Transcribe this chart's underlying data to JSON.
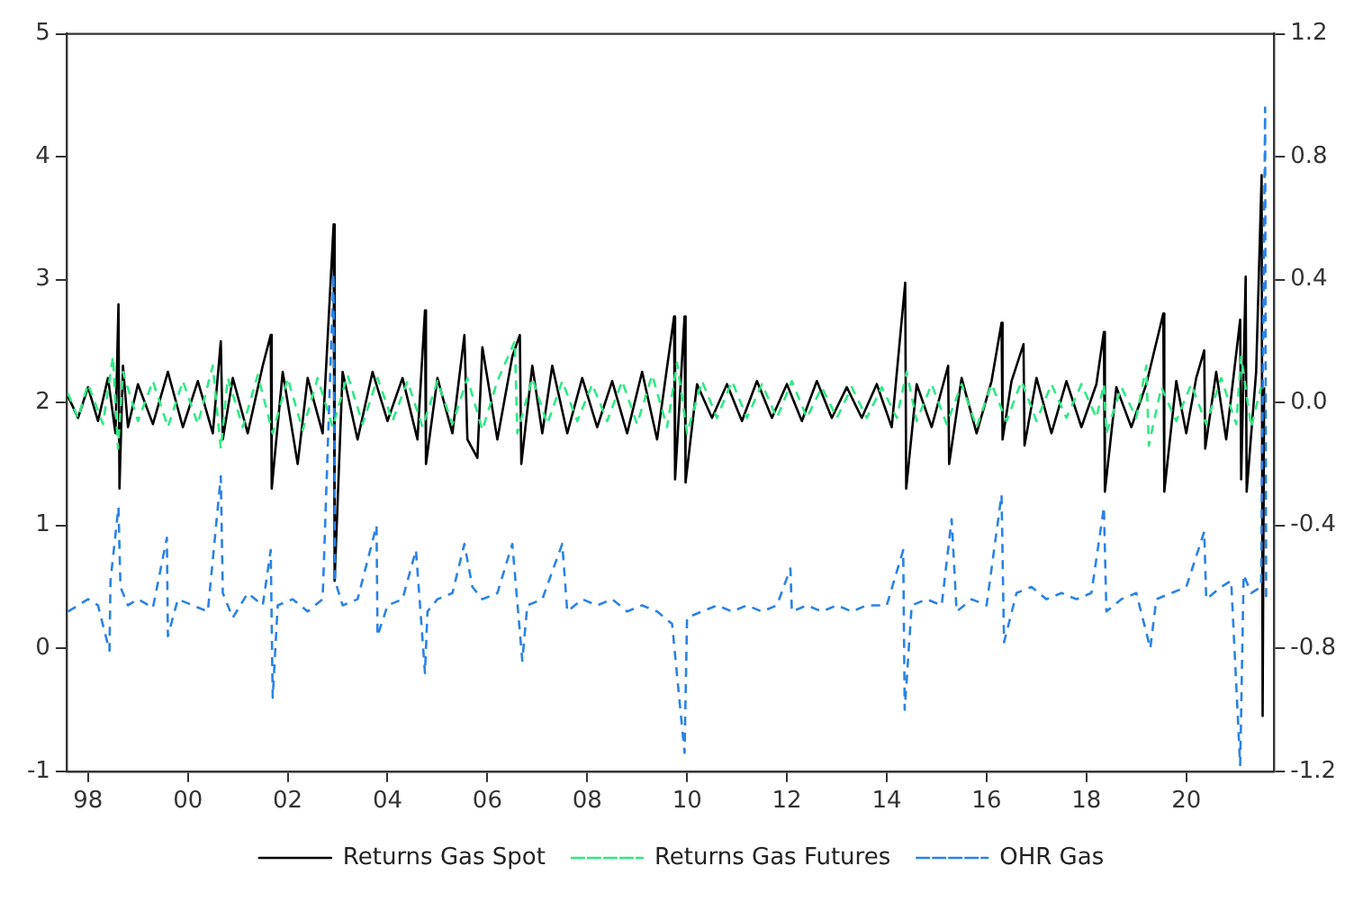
{
  "chart_data": {
    "type": "line",
    "xlim": [
      1997.57,
      2021.76
    ],
    "xticks": [
      {
        "value": 1998,
        "label": "98"
      },
      {
        "value": 2000,
        "label": "00"
      },
      {
        "value": 2002,
        "label": "02"
      },
      {
        "value": 2004,
        "label": "04"
      },
      {
        "value": 2006,
        "label": "06"
      },
      {
        "value": 2008,
        "label": "08"
      },
      {
        "value": 2010,
        "label": "10"
      },
      {
        "value": 2012,
        "label": "12"
      },
      {
        "value": 2014,
        "label": "14"
      },
      {
        "value": 2016,
        "label": "16"
      },
      {
        "value": 2018,
        "label": "18"
      },
      {
        "value": 2020,
        "label": "20"
      }
    ],
    "ylim": [
      -1,
      5
    ],
    "yticks": [
      -1,
      0,
      1,
      2,
      3,
      4,
      5
    ],
    "y2lim": [
      -1.2,
      1.2
    ],
    "y2ticks": [
      {
        "value": -1.2,
        "label": "-1.2"
      },
      {
        "value": -0.8,
        "label": "-0.8"
      },
      {
        "value": -0.4,
        "label": "-0.4"
      },
      {
        "value": 0,
        "label": "0.0"
      },
      {
        "value": 0.4,
        "label": "0.4"
      },
      {
        "value": 0.8,
        "label": "0.8"
      },
      {
        "value": 1.2,
        "label": "1.2"
      }
    ],
    "grid": false,
    "legend": "bottom",
    "marker": "none",
    "series": [
      {
        "name": "Returns Gas Spot",
        "color": "#000000",
        "axis": "y2",
        "line_style": "solid",
        "x": [
          1997.6,
          1997.8,
          1998.0,
          1998.2,
          1998.4,
          1998.55,
          1998.61,
          1998.63,
          1998.7,
          1998.8,
          1999.0,
          1999.3,
          1999.6,
          1999.9,
          2000.2,
          2000.5,
          2000.66,
          2000.7,
          2000.9,
          2001.2,
          2001.5,
          2001.66,
          2001.68,
          2001.9,
          2002.2,
          2002.4,
          2002.7,
          2002.92,
          2002.94,
          2003.1,
          2003.4,
          2003.7,
          2004.0,
          2004.3,
          2004.6,
          2004.75,
          2004.77,
          2005.0,
          2005.3,
          2005.54,
          2005.6,
          2005.8,
          2005.9,
          2006.2,
          2006.5,
          2006.65,
          2006.68,
          2006.9,
          2007.1,
          2007.3,
          2007.6,
          2007.9,
          2008.2,
          2008.5,
          2008.8,
          2009.1,
          2009.4,
          2009.74,
          2009.76,
          2009.95,
          2009.97,
          2010.2,
          2010.5,
          2010.8,
          2011.1,
          2011.4,
          2011.7,
          2012.0,
          2012.3,
          2012.6,
          2012.9,
          2013.2,
          2013.5,
          2013.8,
          2014.1,
          2014.37,
          2014.39,
          2014.6,
          2014.9,
          2015.23,
          2015.25,
          2015.5,
          2015.8,
          2016.1,
          2016.3,
          2016.32,
          2016.5,
          2016.74,
          2016.76,
          2017.0,
          2017.3,
          2017.6,
          2017.9,
          2018.2,
          2018.35,
          2018.37,
          2018.6,
          2018.9,
          2019.2,
          2019.54,
          2019.56,
          2019.8,
          2020.0,
          2020.2,
          2020.36,
          2020.38,
          2020.6,
          2020.8,
          2021.08,
          2021.1,
          2021.19,
          2021.21,
          2021.4,
          2021.51,
          2021.53,
          2021.56
        ],
        "values": [
          0.02,
          -0.05,
          0.05,
          -0.06,
          0.08,
          -0.1,
          0.32,
          -0.28,
          0.12,
          -0.08,
          0.06,
          -0.07,
          0.1,
          -0.08,
          0.07,
          -0.1,
          0.2,
          -0.12,
          0.08,
          -0.1,
          0.12,
          0.22,
          -0.28,
          0.1,
          -0.2,
          0.08,
          -0.1,
          0.58,
          -0.58,
          0.1,
          -0.12,
          0.1,
          -0.06,
          0.08,
          -0.12,
          0.3,
          -0.2,
          0.08,
          -0.1,
          0.22,
          -0.12,
          -0.18,
          0.18,
          -0.12,
          0.15,
          0.22,
          -0.2,
          0.12,
          -0.1,
          0.12,
          -0.1,
          0.08,
          -0.08,
          0.07,
          -0.1,
          0.1,
          -0.12,
          0.28,
          -0.25,
          0.28,
          -0.26,
          0.06,
          -0.05,
          0.06,
          -0.06,
          0.07,
          -0.05,
          0.06,
          -0.06,
          0.07,
          -0.05,
          0.05,
          -0.05,
          0.06,
          -0.08,
          0.39,
          -0.28,
          0.06,
          -0.08,
          0.12,
          -0.2,
          0.08,
          -0.1,
          0.07,
          0.26,
          -0.12,
          0.07,
          0.19,
          -0.14,
          0.08,
          -0.1,
          0.07,
          -0.08,
          0.06,
          0.23,
          -0.29,
          0.05,
          -0.08,
          0.06,
          0.29,
          -0.29,
          0.07,
          -0.1,
          0.08,
          0.17,
          -0.15,
          0.1,
          -0.12,
          0.27,
          -0.25,
          0.41,
          -0.29,
          0.1,
          0.74,
          -1.02,
          0.05
        ]
      },
      {
        "name": "Returns Gas Futures",
        "color": "#2eea84",
        "axis": "y2",
        "line_style": "dashed",
        "x": [
          1997.6,
          1997.8,
          1998.0,
          1998.3,
          1998.5,
          1998.6,
          1998.7,
          1999.0,
          1999.3,
          1999.6,
          1999.9,
          2000.2,
          2000.5,
          2000.66,
          2000.8,
          2001.1,
          2001.4,
          2001.7,
          2002.0,
          2002.3,
          2002.6,
          2002.9,
          2003.2,
          2003.5,
          2003.8,
          2004.1,
          2004.4,
          2004.7,
          2005.0,
          2005.3,
          2005.6,
          2005.9,
          2006.2,
          2006.55,
          2006.6,
          2006.9,
          2007.2,
          2007.5,
          2007.8,
          2008.1,
          2008.4,
          2008.7,
          2009.0,
          2009.3,
          2009.6,
          2009.8,
          2010.0,
          2010.3,
          2010.6,
          2010.9,
          2011.2,
          2011.5,
          2011.8,
          2012.1,
          2012.4,
          2012.7,
          2013.0,
          2013.3,
          2013.6,
          2013.9,
          2014.2,
          2014.4,
          2014.6,
          2014.9,
          2015.2,
          2015.5,
          2015.8,
          2016.1,
          2016.4,
          2016.7,
          2017.0,
          2017.3,
          2017.6,
          2017.9,
          2018.2,
          2018.35,
          2018.4,
          2018.7,
          2019.0,
          2019.2,
          2019.25,
          2019.5,
          2019.8,
          2020.1,
          2020.4,
          2020.7,
          2021.0,
          2021.1,
          2021.3,
          2021.5
        ],
        "values": [
          0.03,
          -0.05,
          0.06,
          -0.07,
          0.15,
          -0.15,
          0.1,
          -0.06,
          0.07,
          -0.08,
          0.07,
          -0.07,
          0.12,
          -0.15,
          0.08,
          -0.08,
          0.09,
          -0.1,
          0.08,
          -0.09,
          0.08,
          -0.08,
          0.09,
          -0.07,
          0.08,
          -0.06,
          0.07,
          -0.08,
          0.07,
          -0.07,
          0.08,
          -0.09,
          0.07,
          0.2,
          -0.1,
          0.08,
          -0.07,
          0.07,
          -0.06,
          0.06,
          -0.06,
          0.07,
          -0.07,
          0.09,
          -0.08,
          0.13,
          -0.1,
          0.07,
          -0.05,
          0.07,
          -0.05,
          0.06,
          -0.05,
          0.07,
          -0.05,
          0.05,
          -0.05,
          0.05,
          -0.05,
          0.05,
          -0.05,
          0.1,
          -0.06,
          0.06,
          -0.07,
          0.06,
          -0.08,
          0.06,
          -0.06,
          0.07,
          -0.06,
          0.06,
          -0.05,
          0.06,
          -0.05,
          0.06,
          -0.1,
          0.05,
          -0.05,
          0.12,
          -0.14,
          0.05,
          -0.06,
          0.06,
          -0.07,
          0.08,
          -0.07,
          0.15,
          -0.08,
          0.05
        ]
      },
      {
        "name": "OHR Gas",
        "color": "#2a82e6",
        "axis": "y",
        "line_style": "dashed",
        "x": [
          1997.6,
          1997.8,
          1998.0,
          1998.2,
          1998.43,
          1998.45,
          1998.61,
          1998.65,
          1998.8,
          1999.0,
          1999.3,
          1999.58,
          1999.6,
          1999.8,
          2000.1,
          2000.4,
          2000.66,
          2000.7,
          2000.9,
          2001.2,
          2001.5,
          2001.66,
          2001.7,
          2001.8,
          2002.1,
          2002.4,
          2002.7,
          2002.92,
          2002.95,
          2003.1,
          2003.4,
          2003.78,
          2003.8,
          2004.0,
          2004.3,
          2004.57,
          2004.75,
          2004.8,
          2005.0,
          2005.3,
          2005.54,
          2005.7,
          2005.9,
          2006.2,
          2006.5,
          2006.7,
          2006.8,
          2007.1,
          2007.5,
          2007.6,
          2007.9,
          2008.2,
          2008.5,
          2008.8,
          2009.1,
          2009.4,
          2009.7,
          2009.95,
          2010.0,
          2010.3,
          2010.6,
          2010.9,
          2011.2,
          2011.5,
          2011.8,
          2012.07,
          2012.1,
          2012.4,
          2012.7,
          2013.0,
          2013.3,
          2013.6,
          2014.0,
          2014.33,
          2014.36,
          2014.5,
          2014.8,
          2015.1,
          2015.3,
          2015.4,
          2015.7,
          2016.0,
          2016.3,
          2016.35,
          2016.6,
          2016.9,
          2017.2,
          2017.5,
          2017.8,
          2018.1,
          2018.35,
          2018.4,
          2018.7,
          2019.0,
          2019.28,
          2019.4,
          2019.7,
          2020.0,
          2020.36,
          2020.4,
          2020.7,
          2020.9,
          2021.08,
          2021.15,
          2021.3,
          2021.5,
          2021.58,
          2021.6
        ],
        "values": [
          0.3,
          0.35,
          0.4,
          0.35,
          -0.02,
          0.55,
          1.15,
          0.5,
          0.35,
          0.4,
          0.33,
          0.9,
          0.1,
          0.4,
          0.35,
          0.3,
          1.4,
          0.45,
          0.25,
          0.45,
          0.35,
          0.8,
          -0.4,
          0.35,
          0.4,
          0.3,
          0.4,
          3.05,
          0.55,
          0.35,
          0.4,
          1.0,
          0.1,
          0.35,
          0.4,
          0.8,
          -0.2,
          0.3,
          0.4,
          0.45,
          0.85,
          0.5,
          0.4,
          0.45,
          0.85,
          -0.1,
          0.35,
          0.4,
          0.85,
          0.3,
          0.4,
          0.35,
          0.4,
          0.3,
          0.35,
          0.3,
          0.2,
          -0.85,
          0.25,
          0.3,
          0.35,
          0.3,
          0.35,
          0.3,
          0.35,
          0.65,
          0.3,
          0.35,
          0.3,
          0.35,
          0.3,
          0.35,
          0.35,
          0.8,
          -0.5,
          0.35,
          0.4,
          0.35,
          1.05,
          0.3,
          0.4,
          0.35,
          1.25,
          0.05,
          0.45,
          0.5,
          0.4,
          0.45,
          0.4,
          0.45,
          1.15,
          0.3,
          0.4,
          0.45,
          0.0,
          0.4,
          0.45,
          0.5,
          0.95,
          0.4,
          0.5,
          0.55,
          -0.95,
          0.6,
          0.45,
          0.5,
          4.4,
          0.4
        ]
      }
    ]
  }
}
